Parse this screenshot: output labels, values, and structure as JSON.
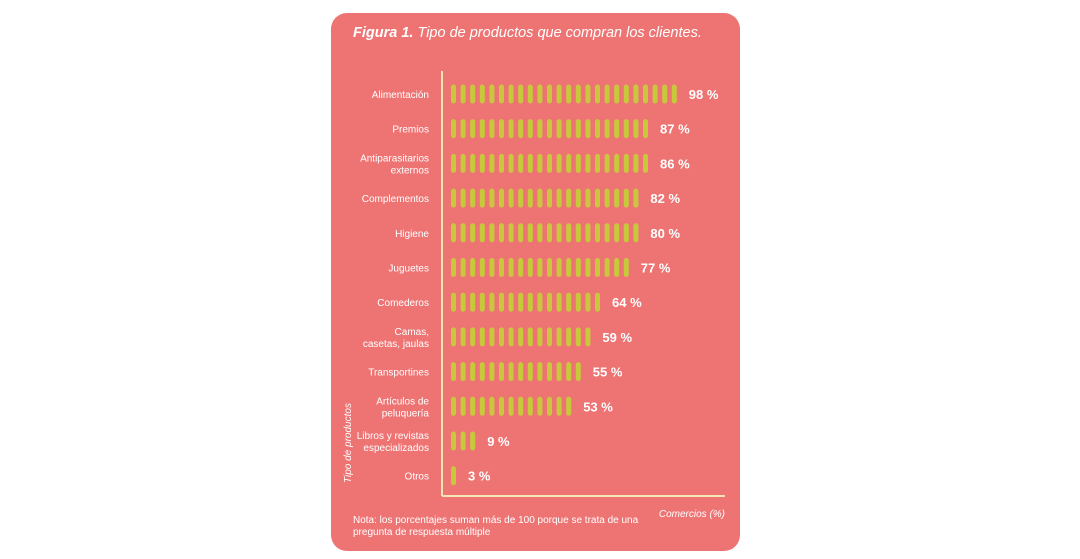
{
  "figure": {
    "title_bold": "Figura 1.",
    "title_rest": " Tipo de productos que compran los clientes.",
    "note": "Nota: los porcentajes suman más de 100 porque se trata de una pregunta de respuesta múltiple"
  },
  "colors": {
    "background": "#ee7474",
    "bar": "#c8c83c",
    "text": "#ffffff",
    "axis": "#f4e6b0"
  },
  "chart_data": {
    "type": "bar",
    "orientation": "horizontal",
    "categories": [
      [
        "Alimentación"
      ],
      [
        "Premios"
      ],
      [
        "Antiparasitarios",
        "externos"
      ],
      [
        "Complementos"
      ],
      [
        "Higiene"
      ],
      [
        "Juguetes"
      ],
      [
        "Comederos"
      ],
      [
        "Camas,",
        "casetas, jaulas"
      ],
      [
        "Transportines"
      ],
      [
        "Artículos de",
        "peluquería"
      ],
      [
        "Libros y revistas",
        "especializados"
      ],
      [
        "Otros"
      ]
    ],
    "values": [
      98,
      87,
      86,
      82,
      80,
      77,
      64,
      59,
      55,
      53,
      9,
      3
    ],
    "value_labels": [
      "98 %",
      "87 %",
      "86 %",
      "82 %",
      "80 %",
      "77 %",
      "64 %",
      "59 %",
      "55 %",
      "53 %",
      "9 %",
      "3 %"
    ],
    "xlabel": "Comercios (%)",
    "ylabel": "Tipo de productos",
    "xlim": [
      0,
      100
    ]
  }
}
